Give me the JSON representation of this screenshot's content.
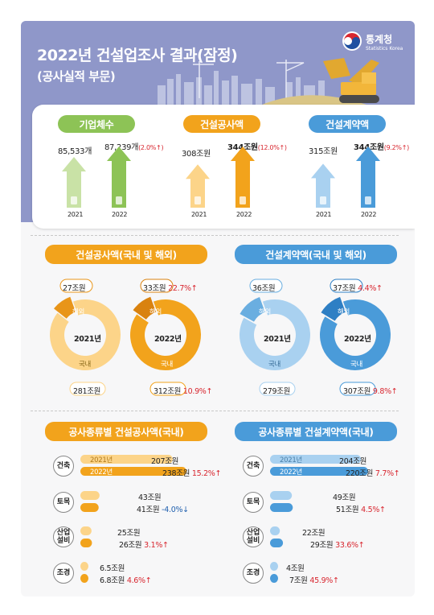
{
  "header": {
    "title": "2022년 건설업조사 결과(잠정)",
    "subtitle": "(공사실적 부문)",
    "logo_name": "통계청",
    "logo_sub": "Statistics Korea"
  },
  "colors": {
    "header_bg": "#8f97c9",
    "green": "#8dc356",
    "green_light": "#c9e2a6",
    "orange": "#f2a31c",
    "orange_light": "#fcd489",
    "blue": "#4a9bd9",
    "blue_light": "#a9d1f0",
    "red": "#d8262f",
    "down": "#1f5fae"
  },
  "chart_data": [
    {
      "type": "bar",
      "title": "기업체수",
      "categories": [
        "2021",
        "2022"
      ],
      "values": [
        85533,
        87239
      ],
      "value_labels": [
        "85,533개",
        "87,239개"
      ],
      "change": "(2.0%↑)"
    },
    {
      "type": "bar",
      "title": "건설공사액",
      "categories": [
        "2021",
        "2022"
      ],
      "values": [
        308,
        344
      ],
      "value_labels": [
        "308조원",
        "344조원"
      ],
      "change": "(12.0%↑)"
    },
    {
      "type": "bar",
      "title": "건설계약액",
      "categories": [
        "2021",
        "2022"
      ],
      "values": [
        315,
        344
      ],
      "value_labels": [
        "315조원",
        "344조원"
      ],
      "change": "(9.2%↑)"
    },
    {
      "type": "pie",
      "title": "건설공사액(국내 및 해외)",
      "charts": [
        {
          "year": "2021년",
          "slices": [
            {
              "name": "해외",
              "value": 27,
              "label": "27조원"
            },
            {
              "name": "국내",
              "value": 281,
              "label": "281조원"
            }
          ]
        },
        {
          "year": "2022년",
          "slices": [
            {
              "name": "해외",
              "value": 33,
              "label": "33조원",
              "change": "22.7%↑"
            },
            {
              "name": "국내",
              "value": 312,
              "label": "312조원",
              "change": "10.9%↑"
            }
          ]
        }
      ]
    },
    {
      "type": "pie",
      "title": "건설계약액(국내 및 해외)",
      "charts": [
        {
          "year": "2021년",
          "slices": [
            {
              "name": "해외",
              "value": 36,
              "label": "36조원"
            },
            {
              "name": "국내",
              "value": 279,
              "label": "279조원"
            }
          ]
        },
        {
          "year": "2022년",
          "slices": [
            {
              "name": "해외",
              "value": 37,
              "label": "37조원",
              "change": "4.4%↑"
            },
            {
              "name": "국내",
              "value": 307,
              "label": "307조원",
              "change": "9.8%↑"
            }
          ]
        }
      ]
    },
    {
      "type": "bar",
      "title": "공사종류별 건설공사액(국내)",
      "orientation": "horizontal",
      "years": [
        "2021년",
        "2022년"
      ],
      "groups": [
        {
          "name": "건축",
          "values": [
            207,
            238
          ],
          "labels": [
            "207조원",
            "238조원"
          ],
          "change": "15.2%↑",
          "dir": "up"
        },
        {
          "name": "토목",
          "values": [
            43,
            41
          ],
          "labels": [
            "43조원",
            "41조원"
          ],
          "change": "-4.0%↓",
          "dir": "down"
        },
        {
          "name": "산업 설비",
          "values": [
            25,
            26
          ],
          "labels": [
            "25조원",
            "26조원"
          ],
          "change": "3.1%↑",
          "dir": "up"
        },
        {
          "name": "조경",
          "values": [
            6.5,
            6.8
          ],
          "labels": [
            "6.5조원",
            "6.8조원"
          ],
          "change": "4.6%↑",
          "dir": "up"
        }
      ]
    },
    {
      "type": "bar",
      "title": "공사종류별 건설계약액(국내)",
      "orientation": "horizontal",
      "years": [
        "2021년",
        "2022년"
      ],
      "groups": [
        {
          "name": "건축",
          "values": [
            204,
            220
          ],
          "labels": [
            "204조원",
            "220조원"
          ],
          "change": "7.7%↑",
          "dir": "up"
        },
        {
          "name": "토목",
          "values": [
            49,
            51
          ],
          "labels": [
            "49조원",
            "51조원"
          ],
          "change": "4.5%↑",
          "dir": "up"
        },
        {
          "name": "산업 설비",
          "values": [
            22,
            29
          ],
          "labels": [
            "22조원",
            "29조원"
          ],
          "change": "33.6%↑",
          "dir": "up"
        },
        {
          "name": "조경",
          "values": [
            4,
            7
          ],
          "labels": [
            "4조원",
            "7조원"
          ],
          "change": "45.9%↑",
          "dir": "up"
        }
      ]
    }
  ]
}
